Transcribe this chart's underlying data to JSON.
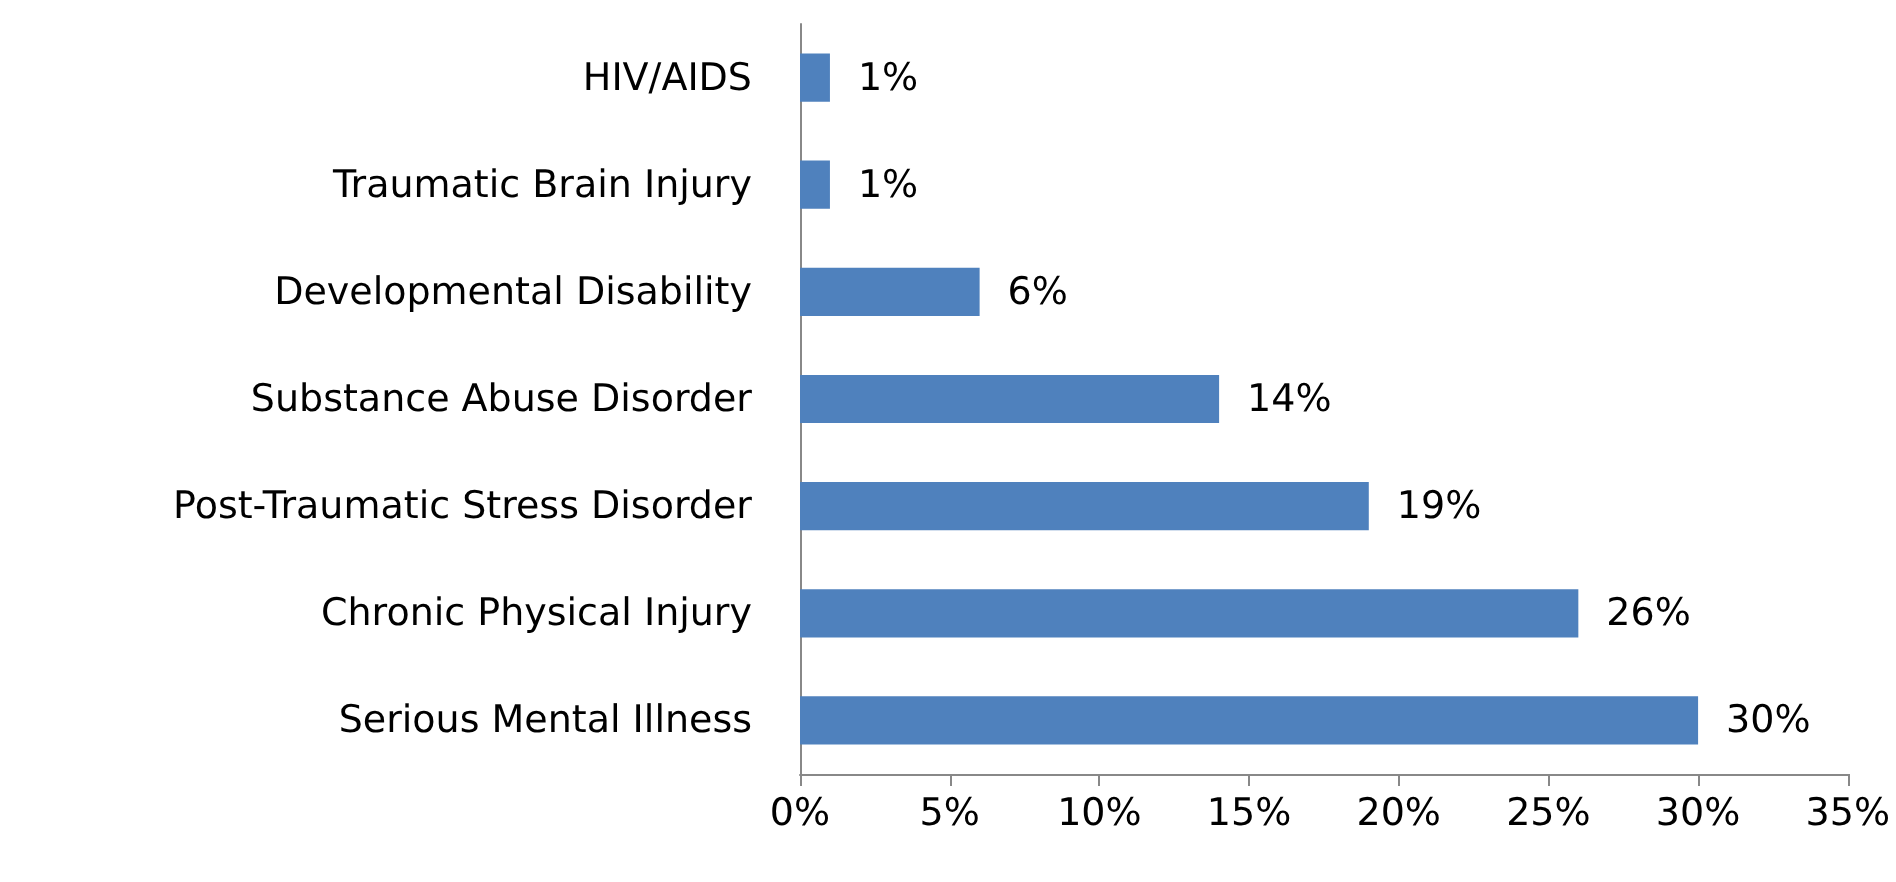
{
  "chart_data": {
    "type": "bar",
    "orientation": "horizontal",
    "categories": [
      "HIV/AIDS",
      "Traumatic Brain Injury",
      "Developmental Disability",
      "Substance Abuse Disorder",
      "Post-Traumatic Stress Disorder",
      "Chronic Physical Injury",
      "Serious Mental Illness"
    ],
    "values": [
      1,
      1,
      6,
      14,
      19,
      26,
      30
    ],
    "value_labels": [
      "1%",
      "1%",
      "6%",
      "14%",
      "19%",
      "26%",
      "30%"
    ],
    "color": "#4f81bd",
    "xlim": [
      0,
      35
    ],
    "xticks": [
      {
        "value": 0,
        "label": "0%"
      },
      {
        "value": 5,
        "label": "5%"
      },
      {
        "value": 10,
        "label": "10%"
      },
      {
        "value": 15,
        "label": "15%"
      },
      {
        "value": 20,
        "label": "20%"
      },
      {
        "value": 25,
        "label": "25%"
      },
      {
        "value": 30,
        "label": "30%"
      },
      {
        "value": 35,
        "label": "35%"
      }
    ],
    "grid": false
  }
}
